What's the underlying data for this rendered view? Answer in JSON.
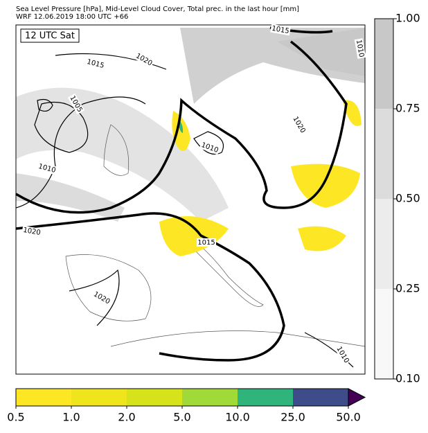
{
  "header": {
    "lines": [
      "Sea Level Pressure [hPa], Mid-Level Cloud Cover, Total prec. in the last hour [mm]",
      "WRF 12.06.2019 18:00 UTC +66"
    ]
  },
  "map": {
    "time_label": "12 UTC Sat",
    "isobar_labels": [
      "1015",
      "1020",
      "1005",
      "1010",
      "1020",
      "1010",
      "1015",
      "1010",
      "1020",
      "1020",
      "1015",
      "1010"
    ]
  },
  "cloud_colorbar": {
    "ticks": [
      {
        "value": 0.1,
        "label": "0.10"
      },
      {
        "value": 0.25,
        "label": "0.25"
      },
      {
        "value": 0.5,
        "label": "0.50"
      },
      {
        "value": 0.75,
        "label": "0.75"
      },
      {
        "value": 1,
        "label": "1.00"
      }
    ],
    "colors": [
      "#f8f8f8",
      "#ececec",
      "#dcdcdc",
      "#c8c8c8"
    ]
  },
  "precip_colorbar": {
    "ticks": [
      0.5,
      {
        "value": 1,
        "label": "1.0"
      },
      {
        "value": 2,
        "label": "2.0"
      },
      {
        "value": 5,
        "label": "5.0"
      },
      {
        "value": 10,
        "label": "10.0"
      },
      {
        "value": 25,
        "label": "25.0"
      },
      {
        "value": 50,
        "label": "50.0"
      }
    ],
    "colors": [
      "#fde725",
      "#efe51c",
      "#d6e21a",
      "#a0da39",
      "#2fb47c",
      "#3e4c8a"
    ],
    "extend_color": "#440154"
  }
}
